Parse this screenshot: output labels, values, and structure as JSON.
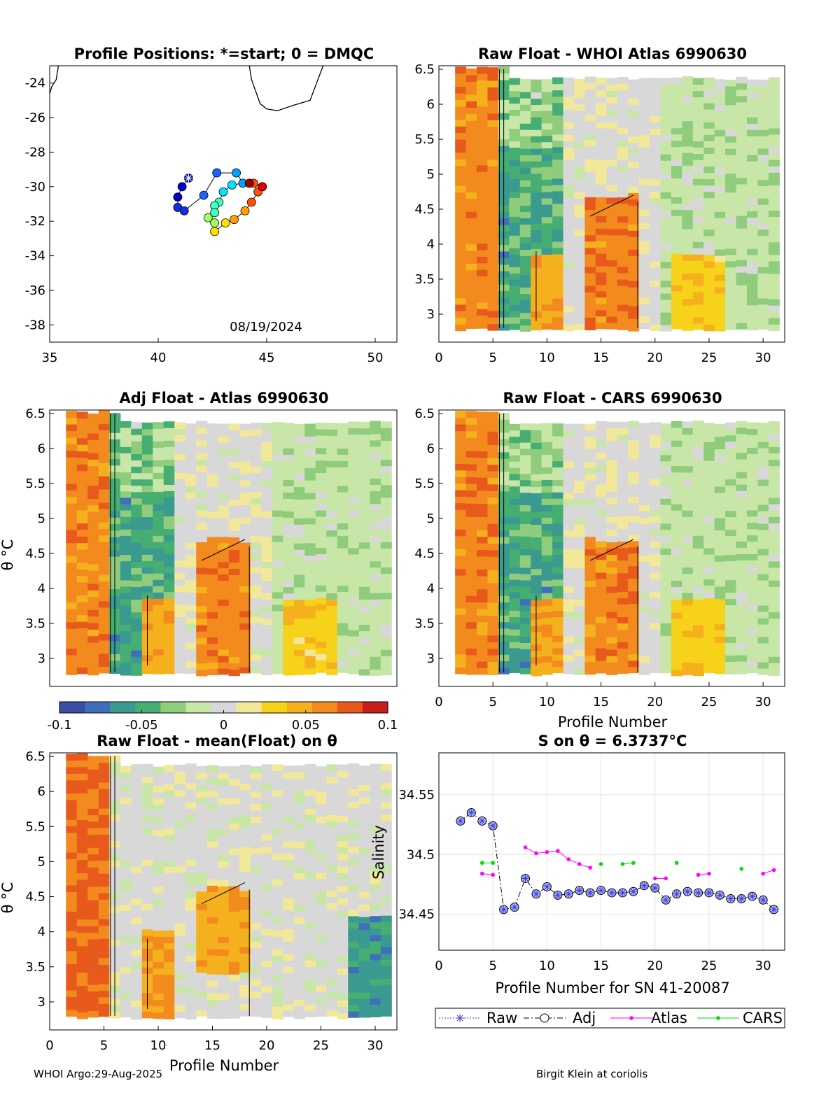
{
  "footer": {
    "left": "WHOI Argo:29-Aug-2025",
    "right": "Birgit Klein at coriolis"
  },
  "colors": {
    "coast": "#000000",
    "raw": "#3a3ae8",
    "adj": "#000000",
    "atlas": "#ff00ff",
    "cars": "#00e000",
    "axes_bg": "#ffffff",
    "gray_mid": "#d8d8d8",
    "colormap": [
      "#3b4ea3",
      "#3f6fb8",
      "#3b9a8f",
      "#46ad73",
      "#8fcc7c",
      "#c8e6a8",
      "#d8d8d8",
      "#f2e89a",
      "#f7d21a",
      "#f5b11d",
      "#f28a1e",
      "#e85a1c",
      "#c81d1d"
    ]
  },
  "chart_data": [
    {
      "id": "map",
      "type": "scatter",
      "title": "Profile Positions: *=start; 0 = DMQC",
      "xlabel": "",
      "ylabel": "",
      "xlim": [
        35,
        51
      ],
      "ylim": [
        -39,
        -23
      ],
      "xticks": [
        35,
        40,
        45,
        50
      ],
      "yticks": [
        -38,
        -36,
        -34,
        -32,
        -30,
        -28,
        -26,
        -24
      ],
      "annotation": "08/19/2024",
      "coastline": [
        [
          35.4,
          -23
        ],
        [
          35.3,
          -23.8
        ],
        [
          35.1,
          -24.2
        ],
        [
          35.0,
          -24.6
        ]
      ],
      "coastline2": [
        [
          44.2,
          -23
        ],
        [
          44.3,
          -23.8
        ],
        [
          44.5,
          -24.5
        ],
        [
          44.7,
          -25.2
        ],
        [
          45.0,
          -25.5
        ],
        [
          45.5,
          -25.6
        ],
        [
          46.2,
          -25.3
        ],
        [
          47.0,
          -25.0
        ],
        [
          47.3,
          -24.0
        ],
        [
          47.6,
          -23
        ]
      ],
      "points": [
        {
          "lon": 41.4,
          "lat": -29.5,
          "t": 0.0
        },
        {
          "lon": 41.1,
          "lat": -30.0,
          "t": 0.04
        },
        {
          "lon": 40.9,
          "lat": -30.6,
          "t": 0.08
        },
        {
          "lon": 40.9,
          "lat": -31.2,
          "t": 0.12
        },
        {
          "lon": 41.2,
          "lat": -31.4,
          "t": 0.16
        },
        {
          "lon": 42.1,
          "lat": -30.5,
          "t": 0.2
        },
        {
          "lon": 42.7,
          "lat": -29.2,
          "t": 0.25
        },
        {
          "lon": 43.6,
          "lat": -29.2,
          "t": 0.3
        },
        {
          "lon": 43.9,
          "lat": -29.8,
          "t": 0.34
        },
        {
          "lon": 43.4,
          "lat": -29.9,
          "t": 0.38
        },
        {
          "lon": 43.0,
          "lat": -30.3,
          "t": 0.42
        },
        {
          "lon": 42.8,
          "lat": -30.9,
          "t": 0.46
        },
        {
          "lon": 42.6,
          "lat": -31.1,
          "t": 0.5
        },
        {
          "lon": 42.6,
          "lat": -31.5,
          "t": 0.54
        },
        {
          "lon": 42.3,
          "lat": -31.8,
          "t": 0.58
        },
        {
          "lon": 42.6,
          "lat": -32.1,
          "t": 0.62
        },
        {
          "lon": 42.6,
          "lat": -32.6,
          "t": 0.66
        },
        {
          "lon": 43.1,
          "lat": -32.1,
          "t": 0.7
        },
        {
          "lon": 43.5,
          "lat": -31.9,
          "t": 0.74
        },
        {
          "lon": 44.0,
          "lat": -31.4,
          "t": 0.78
        },
        {
          "lon": 44.3,
          "lat": -30.9,
          "t": 0.82
        },
        {
          "lon": 44.6,
          "lat": -30.3,
          "t": 0.86
        },
        {
          "lon": 44.4,
          "lat": -29.8,
          "t": 0.9
        },
        {
          "lon": 44.8,
          "lat": -30.0,
          "t": 0.94
        },
        {
          "lon": 44.2,
          "lat": -29.8,
          "t": 1.0
        }
      ]
    },
    {
      "id": "p1",
      "type": "heatmap",
      "title": "Raw Float - WHOI Atlas  6990630",
      "xlabel": "",
      "ylabel": "",
      "xlim": [
        0,
        32
      ],
      "ylim": [
        2.6,
        6.55
      ],
      "xticks": [
        0,
        5,
        10,
        15,
        20,
        25,
        30
      ],
      "yticks": [
        3,
        3.5,
        4,
        4.5,
        5,
        5.5,
        6,
        6.5
      ],
      "seed": 11
    },
    {
      "id": "p2",
      "type": "heatmap",
      "title": "Adj Float - Atlas  6990630",
      "xlabel": "",
      "ylabel": "θ °C",
      "xlim": [
        0,
        32
      ],
      "ylim": [
        2.6,
        6.55
      ],
      "xticks": [],
      "yticks": [
        3,
        3.5,
        4,
        4.5,
        5,
        5.5,
        6,
        6.5
      ],
      "seed": 23
    },
    {
      "id": "p3",
      "type": "heatmap",
      "title": "Raw Float - CARS  6990630",
      "xlabel": "Profile Number",
      "ylabel": "",
      "xlim": [
        0,
        32
      ],
      "ylim": [
        2.6,
        6.55
      ],
      "xticks": [
        0,
        5,
        10,
        15,
        20,
        25,
        30
      ],
      "yticks": [
        3,
        3.5,
        4,
        4.5,
        5,
        5.5,
        6,
        6.5
      ],
      "seed": 37
    },
    {
      "id": "colorbar",
      "type": "heatmap",
      "clim": [
        -0.1,
        0.1
      ],
      "ticks": [
        -0.1,
        -0.05,
        0,
        0.05,
        0.1
      ],
      "ticklabels": [
        "-0.1",
        "-0.05",
        "0",
        "0.05",
        "0.1"
      ]
    },
    {
      "id": "p4",
      "type": "heatmap",
      "title": "Raw Float - mean(Float) on θ",
      "xlabel": "Profile Number",
      "ylabel": "θ °C",
      "xlim": [
        0,
        32
      ],
      "ylim": [
        2.6,
        6.55
      ],
      "xticks": [
        0,
        5,
        10,
        15,
        20,
        25,
        30
      ],
      "yticks": [
        3,
        3.5,
        4,
        4.5,
        5,
        5.5,
        6,
        6.5
      ],
      "seed": 51
    },
    {
      "id": "ts",
      "type": "line",
      "title": "S on θ = 6.3737°C",
      "xlabel": "Profile Number for SN 41-20087",
      "ylabel": "Salinity",
      "xlim": [
        0,
        32
      ],
      "ylim": [
        34.42,
        34.585
      ],
      "xticks": [
        0,
        5,
        10,
        15,
        20,
        25,
        30
      ],
      "yticks": [
        34.45,
        34.5,
        34.55
      ],
      "yticklabels": [
        "34.45",
        "34.5",
        "34.55"
      ],
      "series": [
        {
          "name": "Raw",
          "style": "raw",
          "x": [
            2,
            3,
            4,
            5,
            6,
            7,
            8,
            9,
            10,
            11,
            12,
            13,
            14,
            15,
            16,
            17,
            18,
            19,
            20,
            21,
            22,
            23,
            24,
            25,
            26,
            27,
            28,
            29,
            30,
            31
          ],
          "y": [
            34.528,
            34.535,
            34.528,
            34.524,
            34.454,
            34.456,
            34.48,
            34.467,
            34.473,
            34.466,
            34.467,
            34.47,
            34.468,
            34.47,
            34.468,
            34.468,
            34.469,
            34.474,
            34.472,
            34.462,
            34.467,
            34.469,
            34.468,
            34.468,
            34.466,
            34.463,
            34.463,
            34.465,
            34.462,
            34.454
          ]
        },
        {
          "name": "Adj",
          "style": "adj",
          "x": [
            2,
            3,
            4,
            5,
            6,
            7,
            8,
            9,
            10,
            11,
            12,
            13,
            14,
            15,
            16,
            17,
            18,
            19,
            20,
            21,
            22,
            23,
            24,
            25,
            26,
            27,
            28,
            29,
            30,
            31
          ],
          "y": [
            34.528,
            34.535,
            34.528,
            34.524,
            34.454,
            34.456,
            34.48,
            34.467,
            34.473,
            34.466,
            34.467,
            34.47,
            34.468,
            34.47,
            34.468,
            34.468,
            34.469,
            34.474,
            34.472,
            34.462,
            34.467,
            34.469,
            34.468,
            34.468,
            34.466,
            34.463,
            34.463,
            34.465,
            34.462,
            34.454
          ]
        },
        {
          "name": "Atlas",
          "style": "atlas",
          "segments": [
            {
              "x": [
                4,
                5
              ],
              "y": [
                34.484,
                34.483
              ]
            },
            {
              "x": [
                8,
                9,
                10,
                11,
                12,
                13,
                14
              ],
              "y": [
                34.506,
                34.501,
                34.502,
                34.503,
                34.496,
                34.492,
                34.489
              ]
            },
            {
              "x": [
                20,
                21
              ],
              "y": [
                34.48,
                34.48
              ]
            },
            {
              "x": [
                24,
                25
              ],
              "y": [
                34.483,
                34.484
              ]
            },
            {
              "x": [
                30,
                31
              ],
              "y": [
                34.484,
                34.487
              ]
            }
          ]
        },
        {
          "name": "CARS",
          "style": "cars",
          "segments": [
            {
              "x": [
                4,
                5
              ],
              "y": [
                34.493,
                34.493
              ]
            },
            {
              "x": [
                15
              ],
              "y": [
                34.492
              ]
            },
            {
              "x": [
                17,
                18
              ],
              "y": [
                34.492,
                34.493
              ]
            },
            {
              "x": [
                22
              ],
              "y": [
                34.493
              ]
            },
            {
              "x": [
                28
              ],
              "y": [
                34.488
              ]
            }
          ]
        }
      ],
      "legend": [
        "Raw",
        "Adj",
        "Atlas",
        "CARS"
      ]
    }
  ]
}
